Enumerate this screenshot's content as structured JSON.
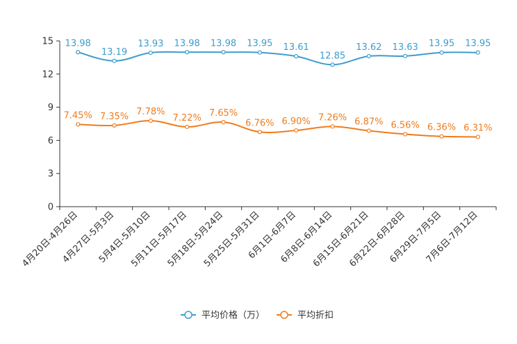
{
  "chart_data": {
    "type": "line",
    "categories": [
      "4月20日-4月26日",
      "4月27日-5月3日",
      "5月4日-5月10日",
      "5月11日-5月17日",
      "5月18日-5月24日",
      "5月25日-5月31日",
      "6月1日-6月7日",
      "6月8日-6月14日",
      "6月15日-6月21日",
      "6月22日-6月28日",
      "6月29日-7月5日",
      "7月6日-7月12日"
    ],
    "ylim": [
      0,
      15
    ],
    "yticks": [
      "0",
      "3",
      "6",
      "9",
      "12",
      "15"
    ],
    "series": [
      {
        "name": "平均价格（万）",
        "color": "#3d9ccc",
        "values": [
          13.98,
          13.19,
          13.93,
          13.98,
          13.98,
          13.95,
          13.61,
          12.85,
          13.62,
          13.63,
          13.95,
          13.95
        ],
        "labels": [
          "13.98",
          "13.19",
          "13.93",
          "13.98",
          "13.98",
          "13.95",
          "13.61",
          "12.85",
          "13.62",
          "13.63",
          "13.95",
          "13.95"
        ]
      },
      {
        "name": "平均折扣",
        "color": "#f07b1b",
        "values": [
          7.45,
          7.35,
          7.78,
          7.22,
          7.65,
          6.76,
          6.9,
          7.26,
          6.87,
          6.56,
          6.36,
          6.31
        ],
        "labels": [
          "7.45%",
          "7.35%",
          "7.78%",
          "7.22%",
          "7.65%",
          "6.76%",
          "6.90%",
          "7.26%",
          "6.87%",
          "6.56%",
          "6.36%",
          "6.31%"
        ]
      }
    ],
    "legend_position": "bottom"
  }
}
